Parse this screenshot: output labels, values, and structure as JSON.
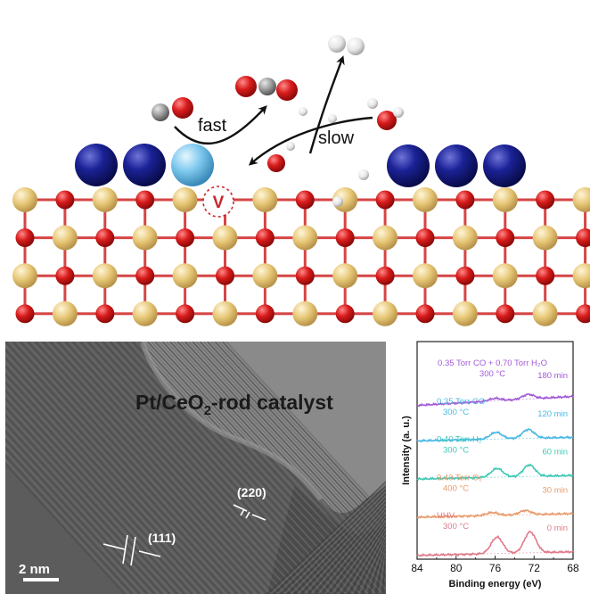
{
  "scheme": {
    "fast_label": "fast",
    "slow_label": "slow",
    "vacancy_label": "V",
    "colors": {
      "ce": "#e8c878",
      "o": "#d81b1b",
      "pt": "#141a8c",
      "pt_single": "#7ec8ee",
      "bond": "#d64545",
      "c": "#9a9a9a",
      "h": "#eeeeee"
    }
  },
  "tem": {
    "title_main": "Pt/CeO",
    "title_sub": "2",
    "title_tail": "-rod catalyst",
    "plane_220": "(220)",
    "plane_111": "(111)",
    "scalebar": "2 nm"
  },
  "chart_data": {
    "type": "line",
    "title": "",
    "xlabel": "Binding energy (eV)",
    "ylabel": "Intensity (a. u.)",
    "xlim": [
      84,
      68
    ],
    "x_ticks": [
      84,
      80,
      76,
      72,
      68
    ],
    "axis_reversed": true,
    "grid": false,
    "series": [
      {
        "label_lines": [
          "0.35 Torr CO + 0.70 Torr H₂O",
          "300 °C"
        ],
        "time": "180 min",
        "color": "#a25ad6",
        "peaks": [
          {
            "x": 76.0,
            "height": 0.12
          },
          {
            "x": 72.6,
            "height": 0.22
          }
        ]
      },
      {
        "label_lines": [
          "0.35 Torr CO",
          "300 °C"
        ],
        "time": "120 min",
        "color": "#4ab8e6",
        "peaks": [
          {
            "x": 75.9,
            "height": 0.32
          },
          {
            "x": 72.6,
            "height": 0.42
          }
        ]
      },
      {
        "label_lines": [
          "0.40 Torr H₂",
          "300 °C"
        ],
        "time": "60 min",
        "color": "#3ec8b5",
        "peaks": [
          {
            "x": 75.8,
            "height": 0.42
          },
          {
            "x": 72.5,
            "height": 0.55
          }
        ]
      },
      {
        "label_lines": [
          "0.40 Torr O₂",
          "400 °C"
        ],
        "time": "30 min",
        "color": "#e89a6b",
        "peaks": [
          {
            "x": 76.3,
            "height": 0.14
          },
          {
            "x": 72.9,
            "height": 0.2
          }
        ]
      },
      {
        "label_lines": [
          "UHV",
          "300 °C"
        ],
        "time": "0 min",
        "color": "#e07a8a",
        "peaks": [
          {
            "x": 75.8,
            "height": 0.78
          },
          {
            "x": 72.4,
            "height": 1.0
          }
        ]
      }
    ]
  }
}
